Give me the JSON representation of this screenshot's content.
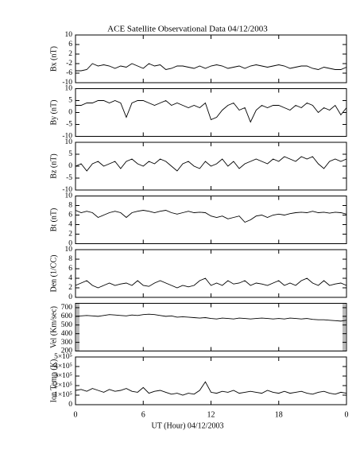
{
  "title": "ACE Satellite Observational Data   04/12/2003",
  "xlabel": "UT (Hour)   04/12/2003",
  "chart_data": [
    {
      "type": "line",
      "ylabel": "Bx (nT)",
      "color": "#000000",
      "xlim": [
        0,
        24
      ],
      "ylim": [
        -10,
        10
      ],
      "yticks": [
        10,
        6,
        2,
        -2,
        -6,
        -10
      ],
      "x": [
        0,
        0.5,
        1,
        1.5,
        2,
        2.5,
        3,
        3.5,
        4,
        4.5,
        5,
        5.5,
        6,
        6.5,
        7,
        7.5,
        8,
        8.5,
        9,
        9.5,
        10,
        10.5,
        11,
        11.5,
        12,
        12.5,
        13,
        13.5,
        14,
        14.5,
        15,
        15.5,
        16,
        16.5,
        17,
        17.5,
        18,
        18.5,
        19,
        19.5,
        20,
        20.5,
        21,
        21.5,
        22,
        22.5,
        23,
        23.5,
        24
      ],
      "values": [
        -5,
        -5,
        -4.5,
        -2,
        -3,
        -2.5,
        -3,
        -4,
        -3,
        -3.5,
        -2,
        -3,
        -4,
        -2,
        -3,
        -2.5,
        -4.5,
        -4,
        -3,
        -3,
        -3.5,
        -4,
        -3,
        -4,
        -3,
        -2.5,
        -3,
        -4,
        -3.5,
        -3,
        -4,
        -3,
        -2.5,
        -3,
        -3.5,
        -3,
        -2.5,
        -3,
        -4,
        -3.5,
        -3,
        -3,
        -4,
        -4.5,
        -3.5,
        -4,
        -4.5,
        -4.5,
        -3.5
      ]
    },
    {
      "type": "line",
      "ylabel": "By (nT)",
      "color": "#000000",
      "xlim": [
        0,
        24
      ],
      "ylim": [
        -10,
        10
      ],
      "yticks": [
        10,
        5,
        0,
        -5,
        -10
      ],
      "x": [
        0,
        0.5,
        1,
        1.5,
        2,
        2.5,
        3,
        3.5,
        4,
        4.5,
        5,
        5.5,
        6,
        6.5,
        7,
        7.5,
        8,
        8.5,
        9,
        9.5,
        10,
        10.5,
        11,
        11.5,
        12,
        12.5,
        13,
        13.5,
        14,
        14.5,
        15,
        15.5,
        16,
        16.5,
        17,
        17.5,
        18,
        18.5,
        19,
        19.5,
        20,
        20.5,
        21,
        21.5,
        22,
        22.5,
        23,
        23.5,
        24
      ],
      "values": [
        3,
        3,
        4,
        4,
        5,
        5,
        4,
        5,
        4,
        -2,
        4,
        5,
        5,
        4,
        3,
        4,
        5,
        3,
        4,
        3,
        2,
        3,
        2,
        4,
        -3,
        -2,
        1,
        3,
        4,
        1,
        2,
        -4,
        1,
        3,
        2,
        3,
        3,
        2,
        1,
        3,
        2,
        4,
        3,
        0,
        2,
        1,
        3,
        -1,
        2
      ]
    },
    {
      "type": "line",
      "ylabel": "Bz (nT)",
      "color": "#000000",
      "xlim": [
        0,
        24
      ],
      "ylim": [
        -10,
        10
      ],
      "yticks": [
        10,
        5,
        0,
        -5,
        -10
      ],
      "x": [
        0,
        0.5,
        1,
        1.5,
        2,
        2.5,
        3,
        3.5,
        4,
        4.5,
        5,
        5.5,
        6,
        6.5,
        7,
        7.5,
        8,
        8.5,
        9,
        9.5,
        10,
        10.5,
        11,
        11.5,
        12,
        12.5,
        13,
        13.5,
        14,
        14.5,
        15,
        15.5,
        16,
        16.5,
        17,
        17.5,
        18,
        18.5,
        19,
        19.5,
        20,
        20.5,
        21,
        21.5,
        22,
        22.5,
        23,
        23.5,
        24
      ],
      "values": [
        0,
        1,
        -2,
        1,
        2,
        0,
        1,
        2,
        -1,
        2,
        3,
        1,
        0,
        2,
        1,
        3,
        2,
        0,
        -2,
        1,
        2,
        0,
        -1,
        2,
        0,
        1,
        3,
        0,
        2,
        -1,
        1,
        2,
        3,
        2,
        1,
        3,
        2,
        4,
        3,
        2,
        4,
        3,
        4,
        1,
        -1,
        2,
        3,
        2,
        3
      ]
    },
    {
      "type": "line",
      "ylabel": "Bt (nT)",
      "color": "#000000",
      "xlim": [
        0,
        24
      ],
      "ylim": [
        0,
        10
      ],
      "yticks": [
        10,
        8,
        6,
        4,
        2,
        0
      ],
      "x": [
        0,
        0.5,
        1,
        1.5,
        2,
        2.5,
        3,
        3.5,
        4,
        4.5,
        5,
        5.5,
        6,
        6.5,
        7,
        7.5,
        8,
        8.5,
        9,
        9.5,
        10,
        10.5,
        11,
        11.5,
        12,
        12.5,
        13,
        13.5,
        14,
        14.5,
        15,
        15.5,
        16,
        16.5,
        17,
        17.5,
        18,
        18.5,
        19,
        19.5,
        20,
        20.5,
        21,
        21.5,
        22,
        22.5,
        23,
        23.5,
        24
      ],
      "values": [
        7,
        6.5,
        6.8,
        6.5,
        5.5,
        6,
        6.5,
        6.8,
        6.5,
        5.5,
        6.5,
        6.8,
        7,
        6.8,
        6.5,
        6.8,
        7,
        6.5,
        6.2,
        6.5,
        6.8,
        6.5,
        6.6,
        6.5,
        5.8,
        5.5,
        5.8,
        5.2,
        5.5,
        5.8,
        4.5,
        5,
        5.8,
        6,
        5.5,
        6,
        6.2,
        6,
        6.3,
        6.5,
        6.6,
        6.5,
        6.8,
        6.5,
        6.6,
        6.4,
        6.6,
        6.5,
        6.2
      ]
    },
    {
      "type": "line",
      "ylabel": "Den (1/CC)",
      "color": "#000000",
      "xlim": [
        0,
        24
      ],
      "ylim": [
        0,
        10
      ],
      "yticks": [
        10,
        8,
        6,
        4,
        2,
        0
      ],
      "x": [
        0,
        0.5,
        1,
        1.5,
        2,
        2.5,
        3,
        3.5,
        4,
        4.5,
        5,
        5.5,
        6,
        6.5,
        7,
        7.5,
        8,
        8.5,
        9,
        9.5,
        10,
        10.5,
        11,
        11.5,
        12,
        12.5,
        13,
        13.5,
        14,
        14.5,
        15,
        15.5,
        16,
        16.5,
        17,
        17.5,
        18,
        18.5,
        19,
        19.5,
        20,
        20.5,
        21,
        21.5,
        22,
        22.5,
        23,
        23.5,
        24
      ],
      "values": [
        2.5,
        3,
        3.5,
        2.5,
        2,
        2.5,
        3,
        2.5,
        2.8,
        3,
        2.5,
        3.5,
        2.5,
        2.3,
        3,
        3.5,
        3,
        2.5,
        2,
        2.5,
        2.2,
        2.5,
        3.5,
        4,
        2.5,
        3,
        2.5,
        3.5,
        2.8,
        3,
        3.5,
        2.5,
        3,
        2.8,
        2.5,
        3,
        3.5,
        2.5,
        3,
        2.5,
        3.5,
        4,
        3,
        2.5,
        3.5,
        2.5,
        2.8,
        3,
        2.5
      ]
    },
    {
      "type": "line",
      "ylabel": "Vel (Km/sec)",
      "color": "#000000",
      "xlim": [
        0,
        24
      ],
      "ylim": [
        200,
        750
      ],
      "yticks": [
        700,
        600,
        500,
        400,
        300,
        200
      ],
      "x": [
        0,
        0.5,
        1,
        1.5,
        2,
        2.5,
        3,
        3.5,
        4,
        4.5,
        5,
        5.5,
        6,
        6.5,
        7,
        7.5,
        8,
        8.5,
        9,
        9.5,
        10,
        10.5,
        11,
        11.5,
        12,
        12.5,
        13,
        13.5,
        14,
        14.5,
        15,
        15.5,
        16,
        16.5,
        17,
        17.5,
        18,
        18.5,
        19,
        19.5,
        20,
        20.5,
        21,
        21.5,
        22,
        22.5,
        23,
        23.5,
        24
      ],
      "values": [
        600,
        605,
        610,
        605,
        600,
        610,
        620,
        615,
        610,
        605,
        615,
        610,
        620,
        625,
        620,
        610,
        600,
        605,
        590,
        595,
        590,
        585,
        580,
        585,
        575,
        570,
        580,
        575,
        570,
        580,
        575,
        570,
        575,
        580,
        575,
        570,
        575,
        570,
        580,
        575,
        570,
        575,
        565,
        560,
        560,
        555,
        550,
        545,
        555
      ]
    },
    {
      "type": "line",
      "ylabel": "Ion Temp (K)",
      "color": "#000000",
      "xlim": [
        0,
        24
      ],
      "ylim": [
        0,
        500000
      ],
      "yticks": [
        {
          "value": 500000,
          "label": "5×10⁵"
        },
        {
          "value": 400000,
          "label": "4×10⁵"
        },
        {
          "value": 300000,
          "label": "3×10⁵"
        },
        {
          "value": 200000,
          "label": "2×10⁵"
        },
        {
          "value": 100000,
          "label": "1×10⁵"
        },
        0
      ],
      "xticks": [
        0,
        6,
        12,
        18,
        {
          "value": 24,
          "label": "0"
        }
      ],
      "x": [
        0,
        0.5,
        1,
        1.5,
        2,
        2.5,
        3,
        3.5,
        4,
        4.5,
        5,
        5.5,
        6,
        6.5,
        7,
        7.5,
        8,
        8.5,
        9,
        9.5,
        10,
        10.5,
        11,
        11.5,
        12,
        12.5,
        13,
        13.5,
        14,
        14.5,
        15,
        15.5,
        16,
        16.5,
        17,
        17.5,
        18,
        18.5,
        19,
        19.5,
        20,
        20.5,
        21,
        21.5,
        22,
        22.5,
        23,
        23.5,
        24
      ],
      "values": [
        150000,
        160000,
        140000,
        170000,
        150000,
        130000,
        160000,
        140000,
        150000,
        170000,
        140000,
        130000,
        180000,
        120000,
        140000,
        150000,
        130000,
        110000,
        120000,
        100000,
        120000,
        110000,
        150000,
        240000,
        130000,
        120000,
        140000,
        130000,
        150000,
        120000,
        130000,
        140000,
        130000,
        120000,
        150000,
        130000,
        120000,
        140000,
        120000,
        130000,
        140000,
        120000,
        110000,
        130000,
        140000,
        120000,
        110000,
        130000,
        120000
      ]
    }
  ]
}
